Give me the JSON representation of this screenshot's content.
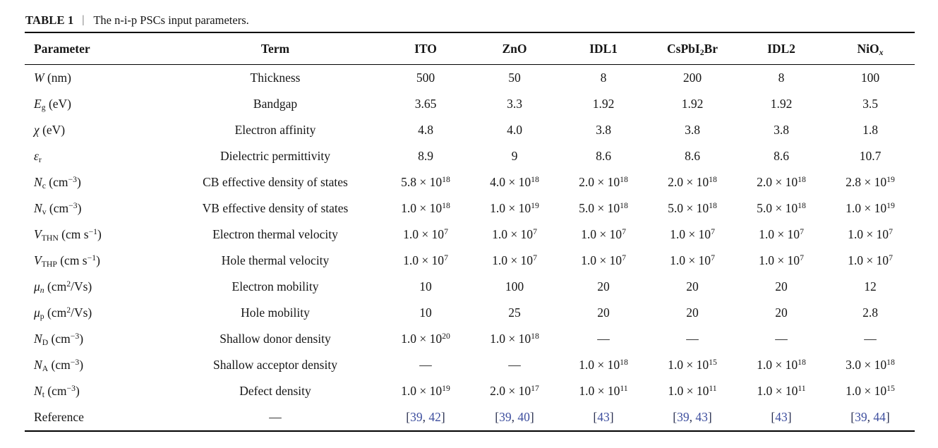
{
  "caption": {
    "label": "TABLE 1",
    "separator": "|",
    "text": "The n-i-p PSCs input parameters."
  },
  "colors": {
    "reference_link": "#3d4e9e",
    "reference_punctuation": "#2b3151",
    "rule": "#000000",
    "text": "#161616"
  },
  "table": {
    "columns": [
      {
        "key": "parameter",
        "label": "Parameter"
      },
      {
        "key": "term",
        "label": "Term"
      },
      {
        "key": "ito",
        "label": "ITO"
      },
      {
        "key": "zno",
        "label": "ZnO"
      },
      {
        "key": "idl1",
        "label": "IDL1"
      },
      {
        "key": "cspbi2br",
        "label": "CsPbI_{2}Br"
      },
      {
        "key": "idl2",
        "label": "IDL2"
      },
      {
        "key": "niox",
        "label": "NiO_{*x*}"
      }
    ],
    "rows": [
      {
        "ref": false,
        "cells": [
          "*W* (nm)",
          "Thickness",
          "500",
          "50",
          "8",
          "200",
          "8",
          "100"
        ]
      },
      {
        "ref": false,
        "cells": [
          "*E*_{g} (eV)",
          "Bandgap",
          "3.65",
          "3.3",
          "1.92",
          "1.92",
          "1.92",
          "3.5"
        ]
      },
      {
        "ref": false,
        "cells": [
          "*χ* (eV)",
          "Electron affinity",
          "4.8",
          "4.0",
          "3.8",
          "3.8",
          "3.8",
          "1.8"
        ]
      },
      {
        "ref": false,
        "cells": [
          "*ε*_{r}",
          "Dielectric permittivity",
          "8.9",
          "9",
          "8.6",
          "8.6",
          "8.6",
          "10.7"
        ]
      },
      {
        "ref": false,
        "cells": [
          "*N*_{c} (cm^{−3})",
          "CB effective density of states",
          "5.8 × 10^{18}",
          "4.0 × 10^{18}",
          "2.0 × 10^{18}",
          "2.0 × 10^{18}",
          "2.0 × 10^{18}",
          "2.8 × 10^{19}"
        ]
      },
      {
        "ref": false,
        "cells": [
          "*N*_{v} (cm^{−3})",
          "VB effective density of states",
          "1.0 × 10^{18}",
          "1.0 × 10^{19}",
          "5.0 × 10^{18}",
          "5.0 × 10^{18}",
          "5.0 × 10^{18}",
          "1.0 × 10^{19}"
        ]
      },
      {
        "ref": false,
        "cells": [
          "*V*_{THN} (cm s^{−1})",
          "Electron thermal velocity",
          "1.0 × 10^{7}",
          "1.0 × 10^{7}",
          "1.0 × 10^{7}",
          "1.0 × 10^{7}",
          "1.0 × 10^{7}",
          "1.0 × 10^{7}"
        ]
      },
      {
        "ref": false,
        "cells": [
          "*V*_{THP} (cm s^{−1})",
          "Hole thermal velocity",
          "1.0 × 10^{7}",
          "1.0 × 10^{7}",
          "1.0 × 10^{7}",
          "1.0 × 10^{7}",
          "1.0 × 10^{7}",
          "1.0 × 10^{7}"
        ]
      },
      {
        "ref": false,
        "cells": [
          "*μ*_{*n*} (cm^{2}/Vs)",
          "Electron mobility",
          "10",
          "100",
          "20",
          "20",
          "20",
          "12"
        ]
      },
      {
        "ref": false,
        "cells": [
          "*μ*_{p} (cm^{2}/Vs)",
          "Hole mobility",
          "10",
          "25",
          "20",
          "20",
          "20",
          "2.8"
        ]
      },
      {
        "ref": false,
        "cells": [
          "*N*_{D} (cm^{−3})",
          "Shallow donor density",
          "1.0 × 10^{20}",
          "1.0 × 10^{18}",
          "—",
          "—",
          "—",
          "—"
        ]
      },
      {
        "ref": false,
        "cells": [
          "*N*_{A} (cm^{−3})",
          "Shallow acceptor density",
          "—",
          "—",
          "1.0 × 10^{18}",
          "1.0 × 10^{15}",
          "1.0 × 10^{18}",
          "3.0 × 10^{18}"
        ]
      },
      {
        "ref": false,
        "cells": [
          "*N*_{t} (cm^{−3})",
          "Defect density",
          "1.0 × 10^{19}",
          "2.0 × 10^{17}",
          "1.0 × 10^{11}",
          "1.0 × 10^{11}",
          "1.0 × 10^{11}",
          "1.0 × 10^{15}"
        ]
      },
      {
        "ref": true,
        "cells": [
          "Reference",
          "—",
          "[39, 42]",
          "[39, 40]",
          "[43]",
          "[39, 43]",
          "[43]",
          "[39, 44]"
        ]
      }
    ]
  }
}
